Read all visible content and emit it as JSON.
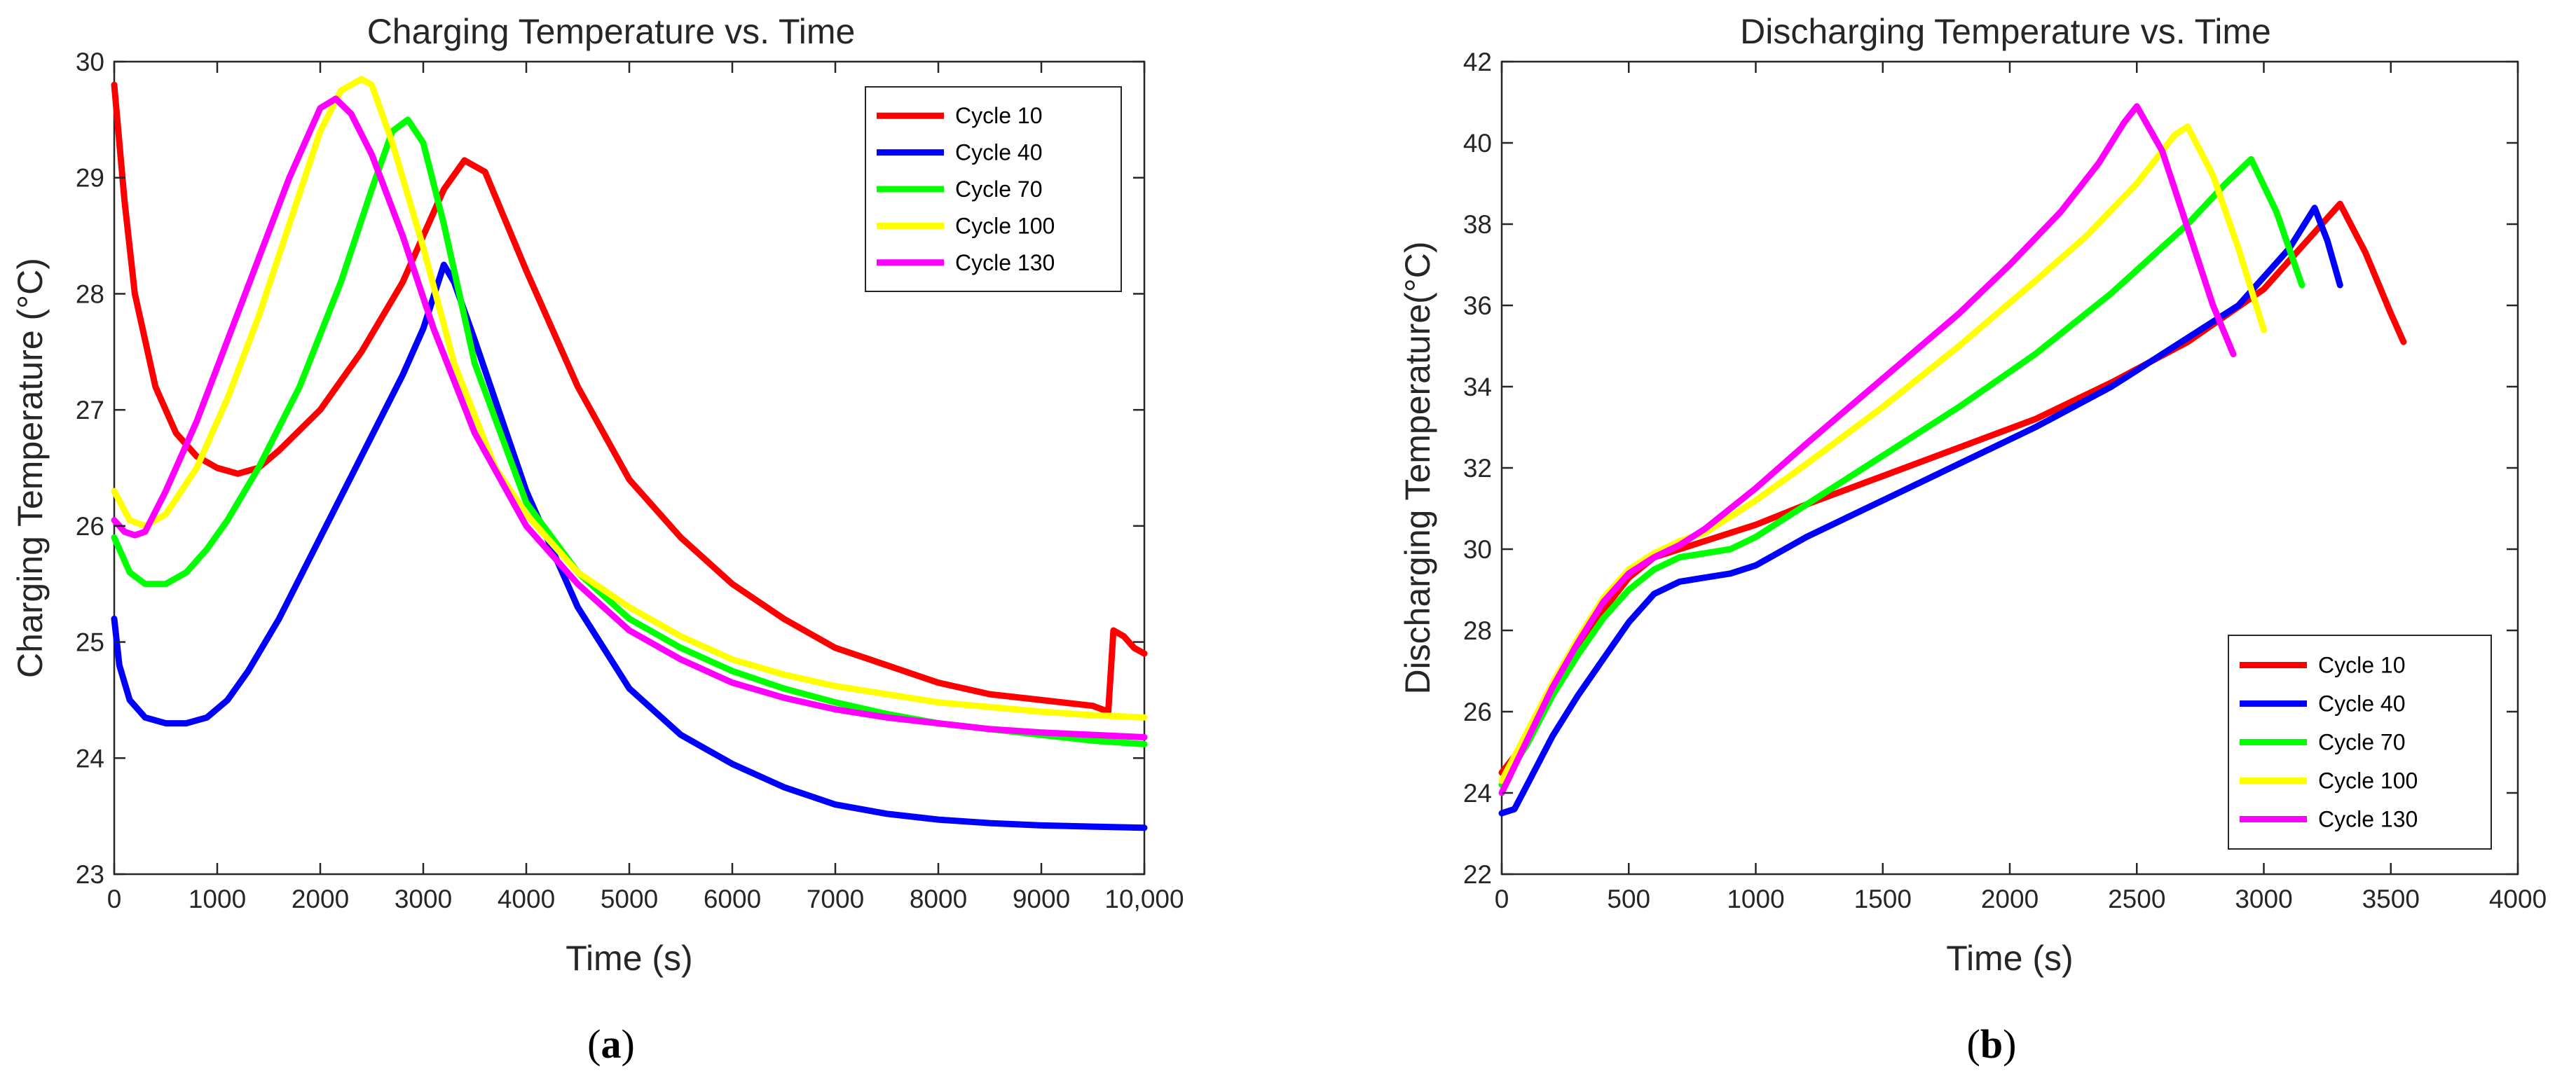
{
  "chart_data": [
    {
      "type": "line",
      "panel": "(a)",
      "title": "Charging Temperature vs. Time",
      "xlabel": "Time (s)",
      "ylabel": "Charging Temperature (°C)",
      "xlim": [
        0,
        10000
      ],
      "ylim": [
        23,
        30
      ],
      "xticks": [
        0,
        1000,
        2000,
        3000,
        4000,
        5000,
        6000,
        7000,
        8000,
        9000,
        10000
      ],
      "xtick_labels": [
        "0",
        "1000",
        "2000",
        "3000",
        "4000",
        "5000",
        "6000",
        "7000",
        "8000",
        "9000",
        "10,000"
      ],
      "yticks": [
        23,
        24,
        25,
        26,
        27,
        28,
        29,
        30
      ],
      "ytick_labels": [
        "23",
        "24",
        "25",
        "26",
        "27",
        "28",
        "29",
        "30"
      ],
      "grid": false,
      "legend": "top-right",
      "series": [
        {
          "name": "Cycle 10",
          "color": "#ff0000",
          "x": [
            0,
            100,
            200,
            400,
            600,
            800,
            1000,
            1200,
            1400,
            1600,
            2000,
            2400,
            2800,
            3200,
            3400,
            3600,
            4000,
            4500,
            5000,
            5500,
            6000,
            6500,
            7000,
            7500,
            8000,
            8500,
            9000,
            9500,
            9650,
            9700,
            9800,
            9900,
            10000
          ],
          "y": [
            29.8,
            28.8,
            28.0,
            27.2,
            26.8,
            26.6,
            26.5,
            26.45,
            26.5,
            26.65,
            27.0,
            27.5,
            28.1,
            28.9,
            29.15,
            29.05,
            28.2,
            27.2,
            26.4,
            25.9,
            25.5,
            25.2,
            24.95,
            24.8,
            24.65,
            24.55,
            24.5,
            24.45,
            24.4,
            25.1,
            25.05,
            24.95,
            24.9
          ]
        },
        {
          "name": "Cycle 40",
          "color": "#0000ff",
          "x": [
            0,
            50,
            150,
            300,
            500,
            700,
            900,
            1100,
            1300,
            1600,
            2000,
            2400,
            2800,
            3000,
            3200,
            3300,
            3500,
            4000,
            4500,
            5000,
            5500,
            6000,
            6500,
            7000,
            7500,
            8000,
            8500,
            9000,
            9500,
            10000
          ],
          "y": [
            25.2,
            24.8,
            24.5,
            24.35,
            24.3,
            24.3,
            24.35,
            24.5,
            24.75,
            25.2,
            25.9,
            26.6,
            27.3,
            27.7,
            28.25,
            28.1,
            27.6,
            26.3,
            25.3,
            24.6,
            24.2,
            23.95,
            23.75,
            23.6,
            23.52,
            23.47,
            23.44,
            23.42,
            23.41,
            23.4
          ]
        },
        {
          "name": "Cycle 70",
          "color": "#00ff00",
          "x": [
            0,
            150,
            300,
            500,
            700,
            900,
            1100,
            1400,
            1800,
            2200,
            2500,
            2700,
            2850,
            3000,
            3200,
            3500,
            4000,
            4500,
            5000,
            5500,
            6000,
            6500,
            7000,
            7500,
            8000,
            8500,
            9000,
            9500,
            10000
          ],
          "y": [
            25.9,
            25.6,
            25.5,
            25.5,
            25.6,
            25.8,
            26.05,
            26.5,
            27.2,
            28.1,
            28.9,
            29.4,
            29.5,
            29.3,
            28.6,
            27.4,
            26.2,
            25.6,
            25.2,
            24.95,
            24.75,
            24.6,
            24.48,
            24.38,
            24.3,
            24.25,
            24.2,
            24.15,
            24.12
          ]
        },
        {
          "name": "Cycle 100",
          "color": "#ffff00",
          "x": [
            0,
            150,
            300,
            500,
            800,
            1100,
            1400,
            1700,
            2000,
            2200,
            2400,
            2500,
            2700,
            3000,
            3300,
            3700,
            4000,
            4500,
            5000,
            5500,
            6000,
            6500,
            7000,
            7500,
            8000,
            8500,
            9000,
            9500,
            10000
          ],
          "y": [
            26.3,
            26.05,
            26.0,
            26.1,
            26.5,
            27.1,
            27.8,
            28.6,
            29.4,
            29.75,
            29.85,
            29.8,
            29.3,
            28.4,
            27.4,
            26.5,
            26.1,
            25.6,
            25.3,
            25.05,
            24.85,
            24.72,
            24.62,
            24.55,
            24.48,
            24.44,
            24.4,
            24.37,
            24.35
          ]
        },
        {
          "name": "Cycle 130",
          "color": "#ff00ff",
          "x": [
            0,
            100,
            200,
            300,
            500,
            800,
            1100,
            1400,
            1700,
            2000,
            2150,
            2300,
            2500,
            2800,
            3100,
            3500,
            4000,
            4500,
            5000,
            5500,
            6000,
            6500,
            7000,
            7500,
            8000,
            8500,
            9000,
            9500,
            10000
          ],
          "y": [
            26.05,
            25.95,
            25.92,
            25.95,
            26.3,
            26.9,
            27.6,
            28.3,
            29.0,
            29.6,
            29.68,
            29.55,
            29.2,
            28.5,
            27.7,
            26.8,
            26.0,
            25.5,
            25.1,
            24.85,
            24.65,
            24.52,
            24.42,
            24.35,
            24.3,
            24.25,
            24.22,
            24.2,
            24.18
          ]
        }
      ]
    },
    {
      "type": "line",
      "panel": "(b)",
      "title": "Discharging Temperature vs. Time",
      "xlabel": "Time (s)",
      "ylabel": "Discharging Temperature(°C)",
      "xlim": [
        0,
        4000
      ],
      "ylim": [
        22,
        42
      ],
      "xticks": [
        0,
        500,
        1000,
        1500,
        2000,
        2500,
        3000,
        3500,
        4000
      ],
      "xtick_labels": [
        "0",
        "500",
        "1000",
        "1500",
        "2000",
        "2500",
        "3000",
        "3500",
        "4000"
      ],
      "yticks": [
        22,
        24,
        26,
        28,
        30,
        32,
        34,
        36,
        38,
        40,
        42
      ],
      "ytick_labels": [
        "22",
        "24",
        "26",
        "28",
        "30",
        "32",
        "34",
        "36",
        "38",
        "40",
        "42"
      ],
      "grid": false,
      "legend": "bottom-right",
      "series": [
        {
          "name": "Cycle 10",
          "color": "#ff0000",
          "x": [
            0,
            100,
            200,
            300,
            400,
            500,
            600,
            700,
            800,
            1000,
            1200,
            1500,
            1800,
            2100,
            2400,
            2700,
            3000,
            3200,
            3300,
            3400,
            3500,
            3550
          ],
          "y": [
            24.5,
            25.3,
            26.4,
            27.5,
            28.5,
            29.3,
            29.8,
            30.0,
            30.2,
            30.6,
            31.1,
            31.8,
            32.5,
            33.2,
            34.1,
            35.1,
            36.4,
            37.8,
            38.5,
            37.3,
            35.8,
            35.1
          ]
        },
        {
          "name": "Cycle 40",
          "color": "#0000ff",
          "x": [
            0,
            50,
            100,
            200,
            300,
            400,
            500,
            600,
            700,
            800,
            900,
            1000,
            1200,
            1500,
            1800,
            2100,
            2400,
            2700,
            2900,
            3100,
            3200,
            3250,
            3300
          ],
          "y": [
            23.5,
            23.6,
            24.2,
            25.4,
            26.4,
            27.3,
            28.2,
            28.9,
            29.2,
            29.3,
            29.4,
            29.6,
            30.3,
            31.2,
            32.1,
            33.0,
            34.0,
            35.2,
            36.0,
            37.4,
            38.4,
            37.6,
            36.5
          ]
        },
        {
          "name": "Cycle 70",
          "color": "#00ff00",
          "x": [
            0,
            100,
            200,
            300,
            400,
            500,
            600,
            700,
            800,
            900,
            1000,
            1200,
            1500,
            1800,
            2100,
            2400,
            2700,
            2850,
            2950,
            3050,
            3150
          ],
          "y": [
            24.2,
            25.2,
            26.4,
            27.4,
            28.3,
            29.0,
            29.5,
            29.8,
            29.9,
            30.0,
            30.3,
            31.1,
            32.3,
            33.5,
            34.8,
            36.3,
            38.0,
            39.0,
            39.6,
            38.3,
            36.5
          ]
        },
        {
          "name": "Cycle 100",
          "color": "#ffff00",
          "x": [
            0,
            100,
            200,
            300,
            400,
            500,
            600,
            700,
            800,
            1000,
            1200,
            1500,
            1800,
            2100,
            2300,
            2500,
            2650,
            2700,
            2800,
            2900,
            3000
          ],
          "y": [
            24.3,
            25.5,
            26.7,
            27.8,
            28.8,
            29.5,
            29.9,
            30.2,
            30.4,
            31.2,
            32.1,
            33.5,
            35.0,
            36.6,
            37.7,
            39.0,
            40.2,
            40.4,
            39.2,
            37.4,
            35.4
          ]
        },
        {
          "name": "Cycle 130",
          "color": "#ff00ff",
          "x": [
            0,
            100,
            200,
            300,
            400,
            500,
            600,
            700,
            800,
            1000,
            1200,
            1500,
            1800,
            2000,
            2200,
            2350,
            2450,
            2500,
            2600,
            2700,
            2800,
            2880
          ],
          "y": [
            24.0,
            25.3,
            26.6,
            27.7,
            28.7,
            29.4,
            29.8,
            30.1,
            30.5,
            31.5,
            32.6,
            34.2,
            35.8,
            37.0,
            38.3,
            39.5,
            40.5,
            40.9,
            39.8,
            37.9,
            36.0,
            34.8
          ]
        }
      ]
    }
  ]
}
